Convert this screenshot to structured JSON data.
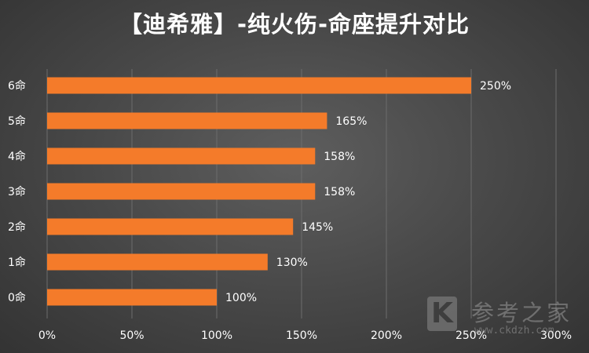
{
  "chart_data": {
    "type": "bar",
    "orientation": "horizontal",
    "title": "【迪希雅】-纯火伤-命座提升对比",
    "categories": [
      "0命",
      "1命",
      "2命",
      "3命",
      "4命",
      "5命",
      "6命"
    ],
    "values": [
      100,
      130,
      145,
      158,
      158,
      165,
      250
    ],
    "value_labels": [
      "100%",
      "130%",
      "145%",
      "158%",
      "158%",
      "165%",
      "250%"
    ],
    "xlim": [
      0,
      300
    ],
    "xticks": [
      0,
      50,
      100,
      150,
      200,
      250,
      300
    ],
    "xtick_labels": [
      "0%",
      "50%",
      "100%",
      "150%",
      "200%",
      "250%",
      "300%"
    ],
    "grid": "vertical",
    "legend": "none",
    "bar_color": "#f47b2a",
    "label_color": "#ffffff"
  },
  "watermark": {
    "logo_letter": "K",
    "name": "参考之家",
    "url": "www.ckdzh.com"
  }
}
